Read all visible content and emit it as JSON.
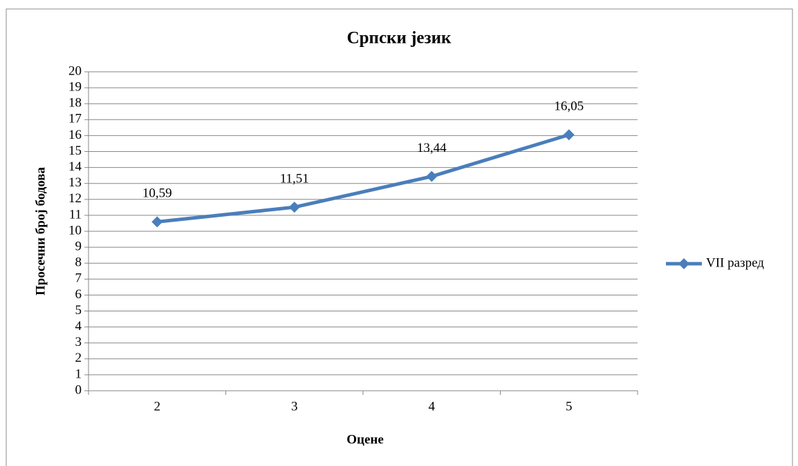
{
  "chart_data": {
    "type": "line",
    "title": "Српски језик",
    "x_label": "Оцене",
    "y_label": "Просечни број бодова",
    "categories": [
      "2",
      "3",
      "4",
      "5"
    ],
    "series": [
      {
        "name": "VII разред",
        "color": "#4a7ebb",
        "values": [
          10.59,
          11.51,
          13.44,
          16.05
        ],
        "value_labels": [
          "10,59",
          "11,51",
          "13,44",
          "16,05"
        ]
      }
    ],
    "ylim": [
      0,
      20
    ],
    "yticks": [
      0,
      1,
      2,
      3,
      4,
      5,
      6,
      7,
      8,
      9,
      10,
      11,
      12,
      13,
      14,
      15,
      16,
      17,
      18,
      19,
      20
    ],
    "grid": true,
    "legend": "right"
  }
}
